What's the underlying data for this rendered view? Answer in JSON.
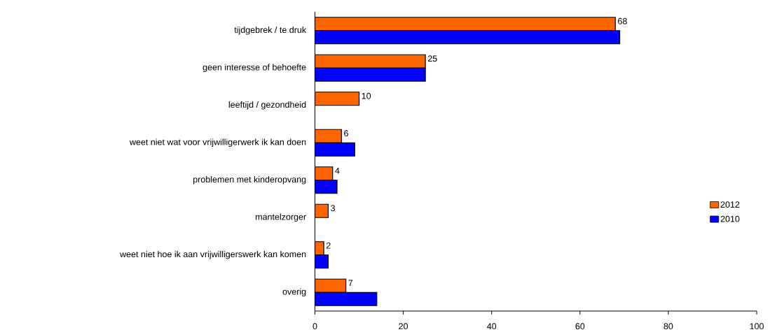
{
  "chart_data": {
    "type": "bar",
    "orientation": "horizontal",
    "categories": [
      "tijdgebrek / te druk",
      "geen interesse of behoefte",
      "leeftijd / gezondheid",
      "weet niet wat voor vrijwilligerwerk ik kan doen",
      "problemen met kinderopvang",
      "mantelzorger",
      "weet niet hoe ik aan vrijwilligerswerk kan komen",
      "overig"
    ],
    "series": [
      {
        "name": "2012",
        "color": "#ff6600",
        "values": [
          68,
          25,
          10,
          6,
          4,
          3,
          2,
          7
        ],
        "value_labels": [
          "68",
          "25",
          "10",
          "6",
          "4",
          "3",
          "2",
          "7"
        ]
      },
      {
        "name": "2010",
        "color": "#0000ff",
        "values": [
          69,
          25,
          null,
          9,
          5,
          null,
          3,
          14
        ]
      }
    ],
    "xlim": [
      0,
      100
    ],
    "xticks": [
      0,
      20,
      40,
      60,
      80,
      100
    ],
    "legend": "right"
  }
}
